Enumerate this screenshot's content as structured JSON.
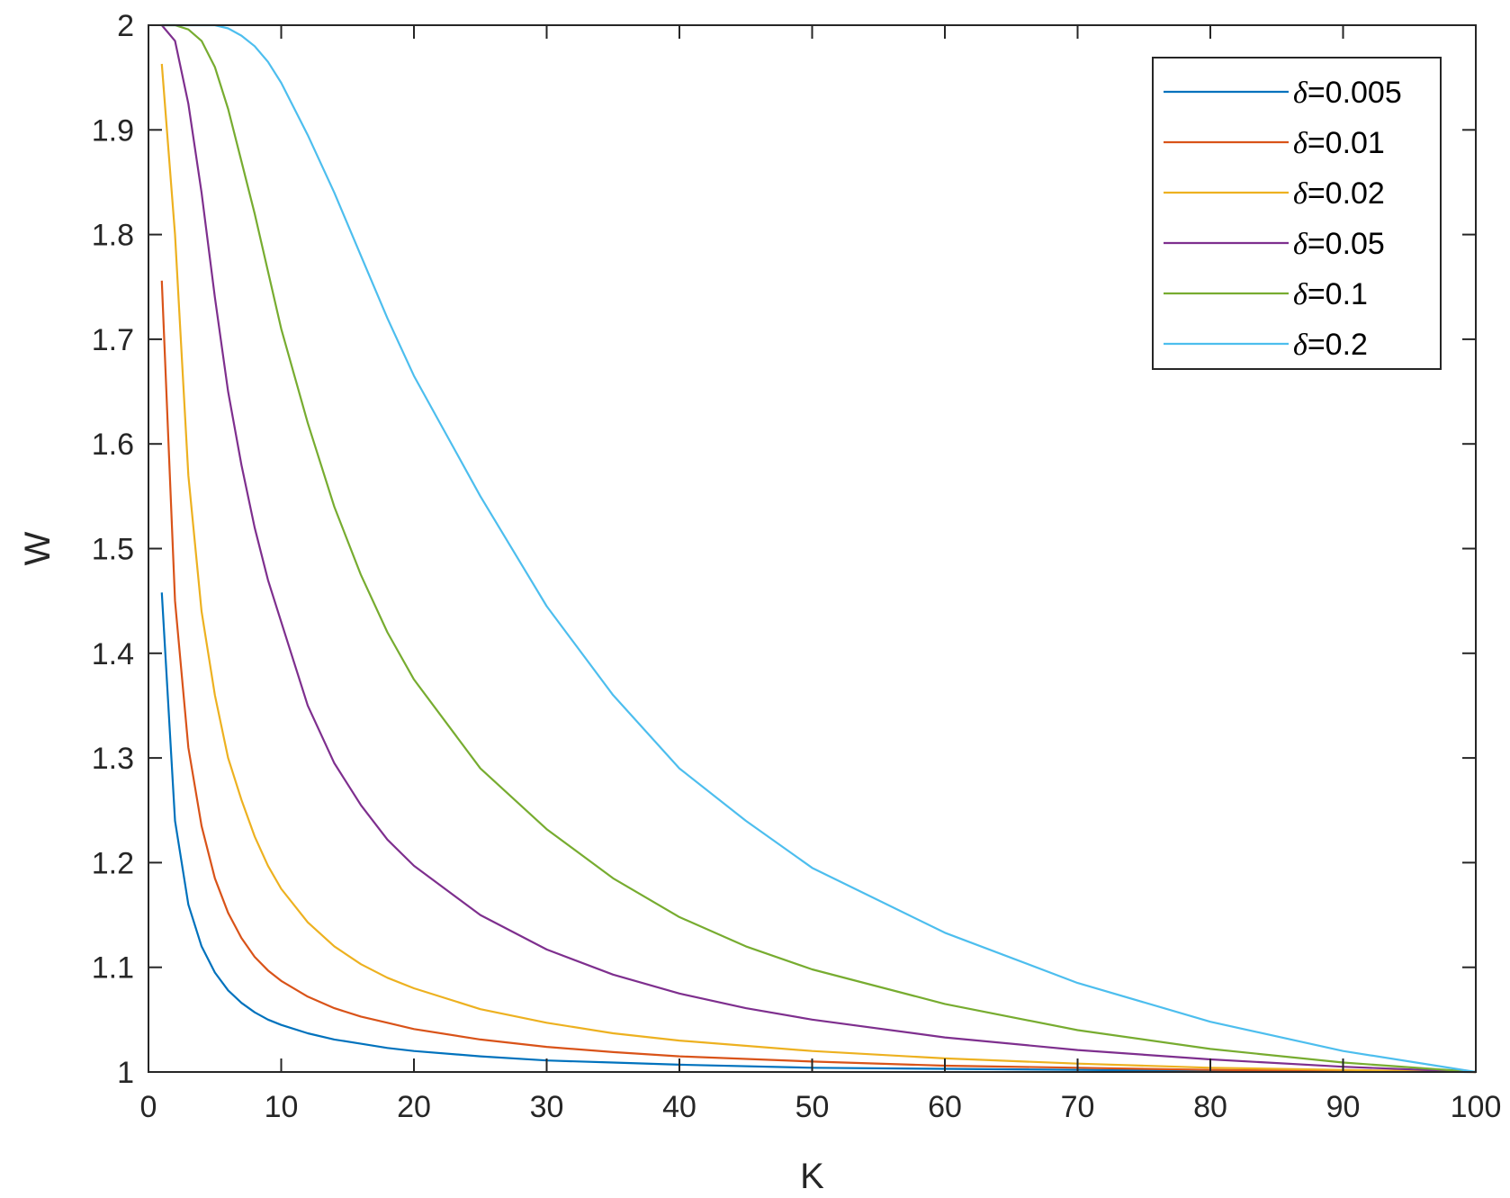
{
  "chart_data": {
    "type": "line",
    "xlabel": "K",
    "ylabel": "W",
    "xlim": [
      0,
      100
    ],
    "ylim": [
      1,
      2
    ],
    "xticks": [
      0,
      10,
      20,
      30,
      40,
      50,
      60,
      70,
      80,
      90,
      100
    ],
    "yticks": [
      1,
      1.1,
      1.2,
      1.3,
      1.4,
      1.5,
      1.6,
      1.7,
      1.8,
      1.9,
      2
    ],
    "ytick_labels": [
      "1",
      "1.1",
      "1.2",
      "1.3",
      "1.4",
      "1.5",
      "1.6",
      "1.7",
      "1.8",
      "1.9",
      "2"
    ],
    "grid": false,
    "box": true,
    "legend": {
      "position": "top-right",
      "symbol": "δ",
      "labels": [
        "=0.005",
        "=0.01",
        "=0.02",
        "=0.05",
        "=0.1",
        "=0.2"
      ]
    },
    "series": [
      {
        "name": "δ=0.005",
        "color": "#0072BD",
        "x": [
          1,
          2,
          3,
          4,
          5,
          6,
          7,
          8,
          9,
          10,
          12,
          14,
          16,
          18,
          20,
          25,
          30,
          35,
          40,
          50,
          60,
          70,
          80,
          90,
          100
        ],
        "y": [
          1.458,
          1.24,
          1.16,
          1.12,
          1.095,
          1.078,
          1.066,
          1.057,
          1.05,
          1.045,
          1.037,
          1.031,
          1.027,
          1.023,
          1.02,
          1.015,
          1.011,
          1.009,
          1.007,
          1.004,
          1.003,
          1.002,
          1.001,
          1.0005,
          1.0
        ]
      },
      {
        "name": "δ=0.01",
        "color": "#D95319",
        "x": [
          1,
          2,
          3,
          4,
          5,
          6,
          7,
          8,
          9,
          10,
          12,
          14,
          16,
          18,
          20,
          25,
          30,
          35,
          40,
          50,
          60,
          70,
          80,
          90,
          100
        ],
        "y": [
          1.756,
          1.45,
          1.31,
          1.235,
          1.185,
          1.152,
          1.128,
          1.11,
          1.097,
          1.087,
          1.072,
          1.061,
          1.053,
          1.047,
          1.041,
          1.031,
          1.024,
          1.019,
          1.015,
          1.01,
          1.006,
          1.004,
          1.002,
          1.001,
          1.0
        ]
      },
      {
        "name": "δ=0.02",
        "color": "#EDB120",
        "x": [
          1,
          2,
          3,
          4,
          5,
          6,
          7,
          8,
          9,
          10,
          12,
          14,
          16,
          18,
          20,
          25,
          30,
          35,
          40,
          50,
          60,
          70,
          80,
          90,
          100
        ],
        "y": [
          1.963,
          1.8,
          1.57,
          1.44,
          1.36,
          1.3,
          1.26,
          1.225,
          1.197,
          1.175,
          1.143,
          1.12,
          1.103,
          1.09,
          1.08,
          1.06,
          1.047,
          1.037,
          1.03,
          1.02,
          1.013,
          1.008,
          1.004,
          1.002,
          1.0
        ]
      },
      {
        "name": "δ=0.05",
        "color": "#7E2F8E",
        "x": [
          1,
          2,
          3,
          4,
          5,
          6,
          7,
          8,
          9,
          10,
          12,
          14,
          16,
          18,
          20,
          25,
          30,
          35,
          40,
          45,
          50,
          60,
          70,
          80,
          90,
          100
        ],
        "y": [
          2.0,
          1.985,
          1.925,
          1.84,
          1.74,
          1.65,
          1.58,
          1.52,
          1.47,
          1.43,
          1.35,
          1.295,
          1.255,
          1.222,
          1.197,
          1.15,
          1.117,
          1.093,
          1.075,
          1.061,
          1.05,
          1.033,
          1.021,
          1.012,
          1.005,
          1.0
        ]
      },
      {
        "name": "δ=0.1",
        "color": "#77AC30",
        "x": [
          1,
          2,
          3,
          4,
          5,
          6,
          7,
          8,
          10,
          12,
          14,
          16,
          18,
          20,
          25,
          30,
          35,
          40,
          45,
          50,
          60,
          70,
          80,
          90,
          100
        ],
        "y": [
          2.0,
          2.0,
          1.996,
          1.985,
          1.96,
          1.92,
          1.87,
          1.82,
          1.71,
          1.62,
          1.54,
          1.475,
          1.42,
          1.375,
          1.29,
          1.232,
          1.185,
          1.148,
          1.12,
          1.098,
          1.065,
          1.04,
          1.022,
          1.009,
          1.0
        ]
      },
      {
        "name": "δ=0.2",
        "color": "#4DBEEE",
        "x": [
          1,
          2,
          3,
          4,
          5,
          6,
          7,
          8,
          9,
          10,
          12,
          14,
          16,
          18,
          20,
          25,
          30,
          35,
          40,
          45,
          50,
          60,
          70,
          80,
          90,
          100
        ],
        "y": [
          2.0,
          2.0,
          2.0,
          2.0,
          2.0,
          1.997,
          1.99,
          1.98,
          1.965,
          1.945,
          1.895,
          1.84,
          1.78,
          1.72,
          1.665,
          1.55,
          1.445,
          1.36,
          1.29,
          1.24,
          1.195,
          1.133,
          1.085,
          1.048,
          1.02,
          1.0
        ]
      }
    ]
  }
}
